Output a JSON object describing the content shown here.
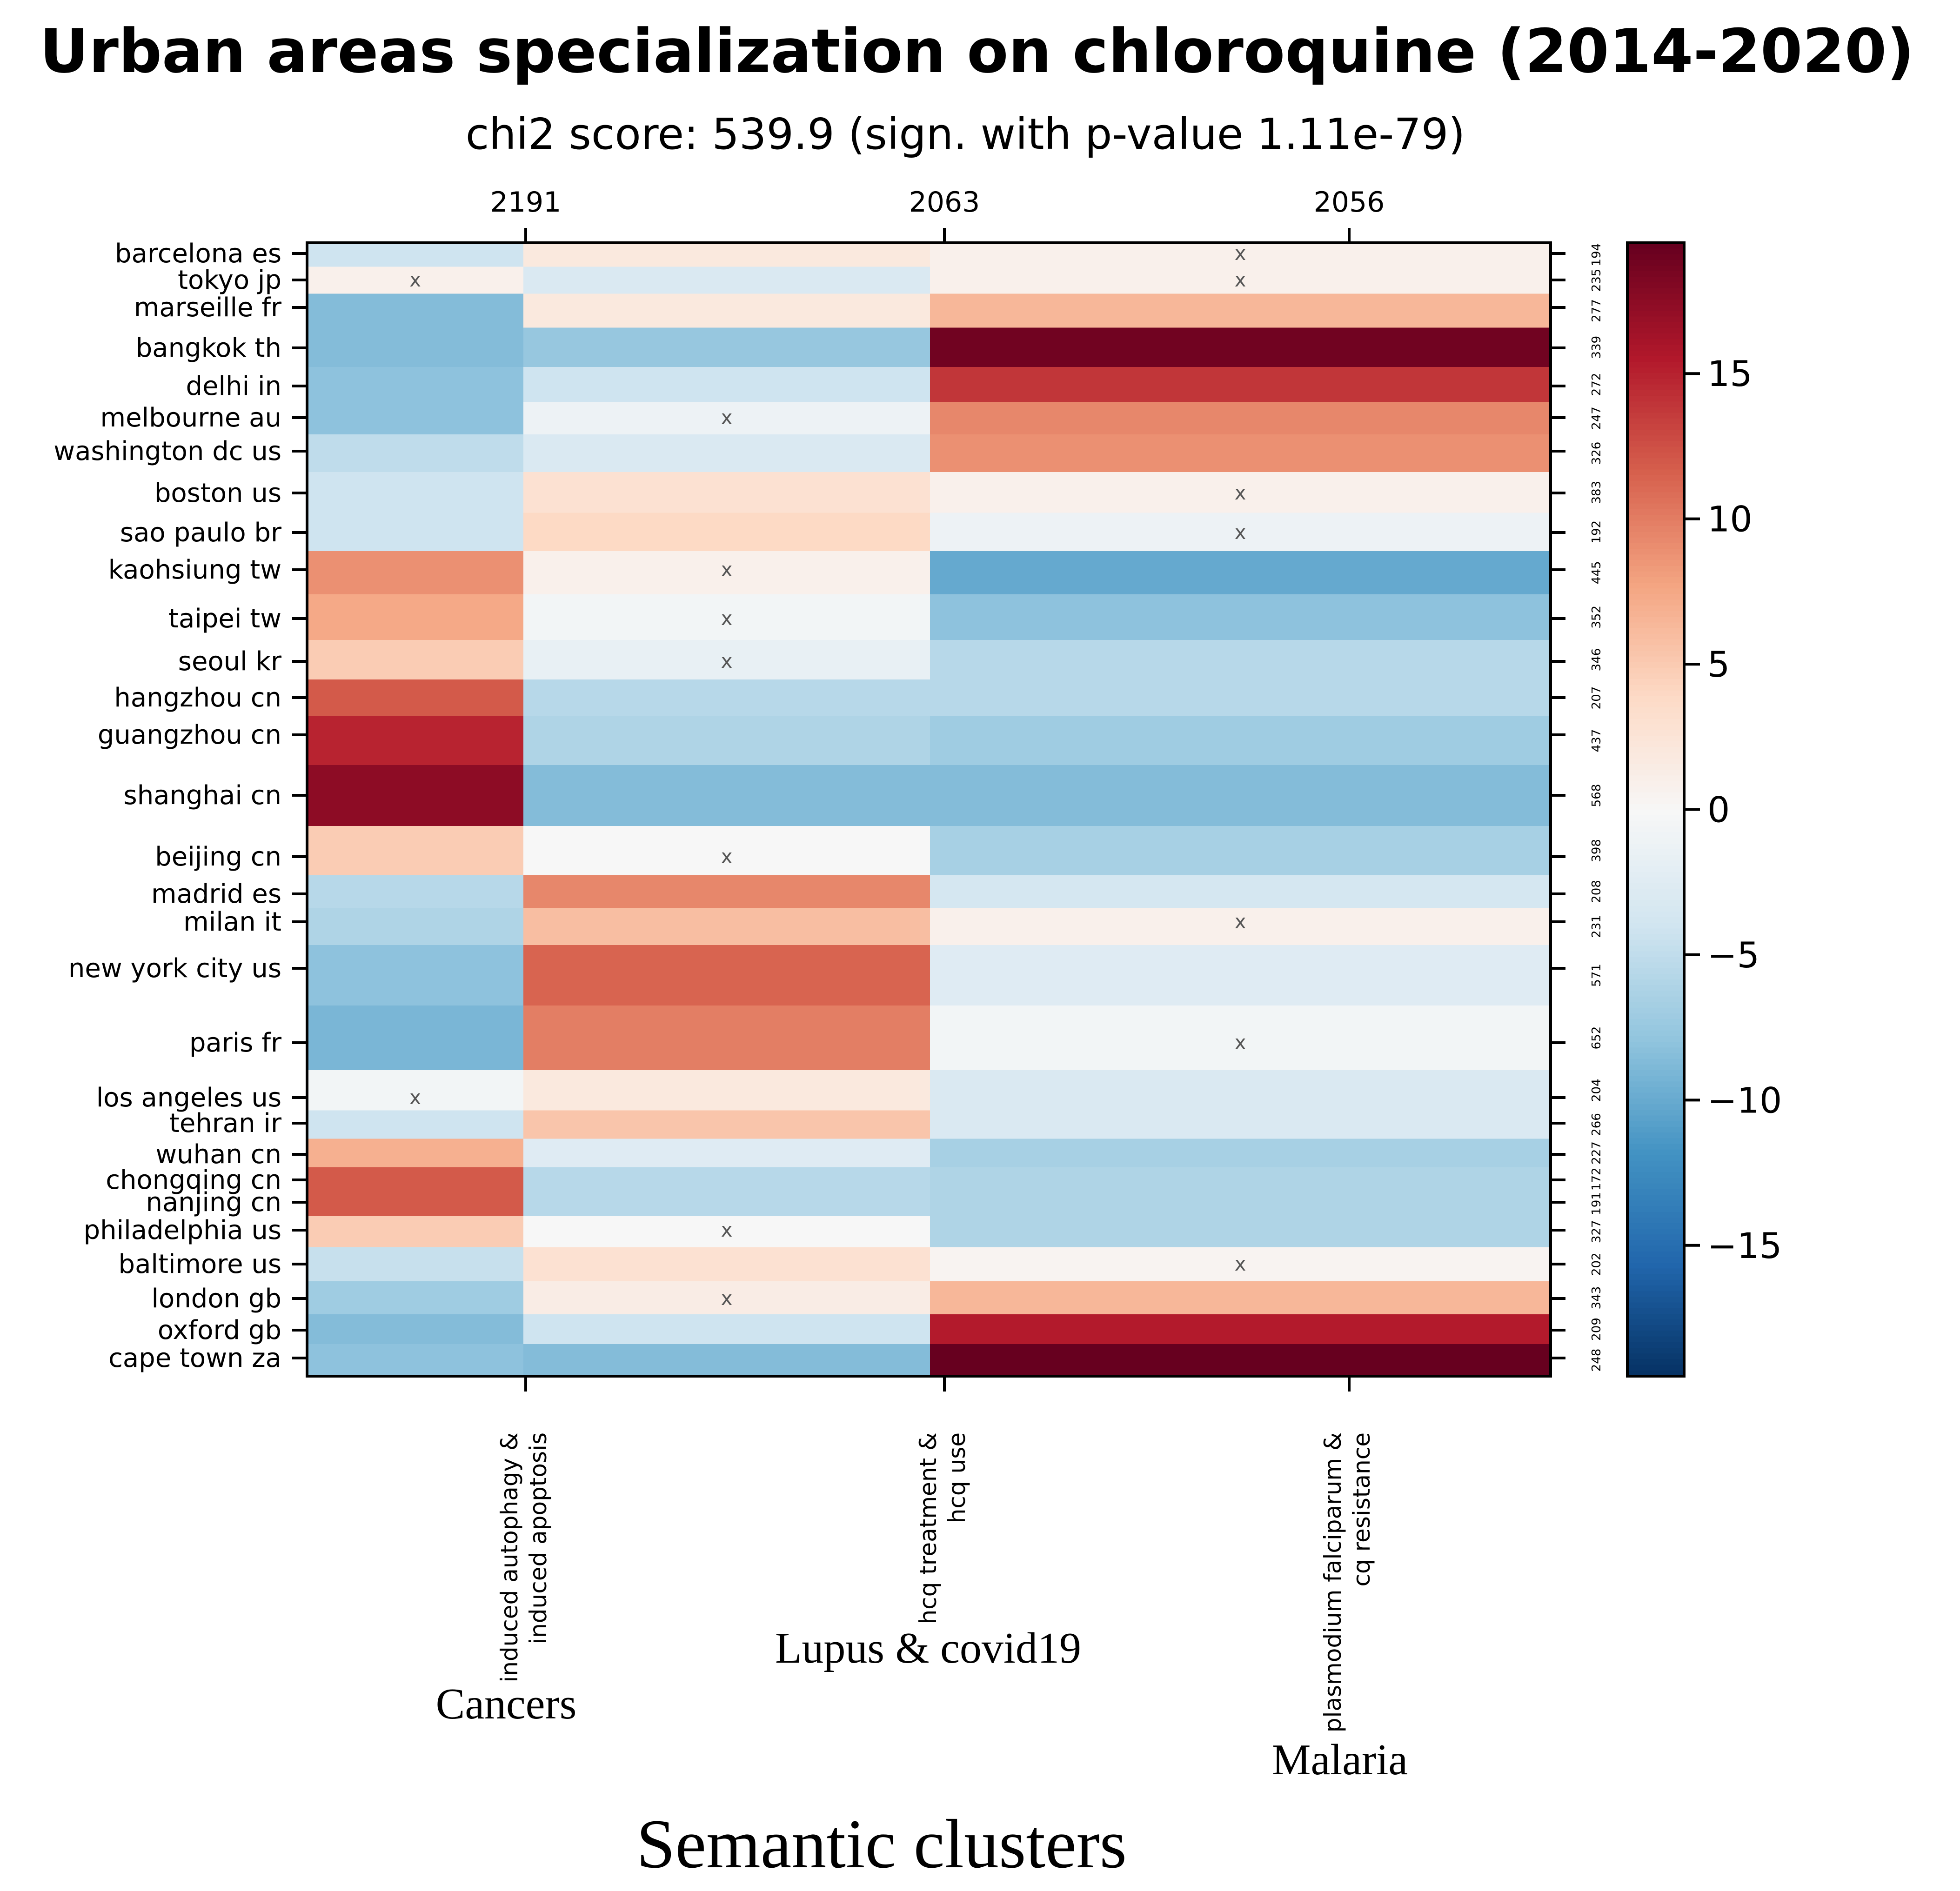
{
  "chart_data": {
    "type": "heatmap",
    "title": "Urban areas specialization on chloroquine (2014-2020)",
    "subtitle": "chi2 score: 539.9 (sign. with p-value 1.11e-79)",
    "xlabel": "Semantic clusters",
    "columns": [
      {
        "count": "2191",
        "label_lines": [
          "induced autophagy &",
          "induced apoptosis"
        ],
        "group": "Cancers"
      },
      {
        "count": "2063",
        "label_lines": [
          "hcq treatment &",
          "hcq use"
        ],
        "group": "Lupus & covid19"
      },
      {
        "count": "2056",
        "label_lines": [
          "plasmodium falciparum &",
          "cq resistance"
        ],
        "group": "Malaria"
      }
    ],
    "rows": [
      {
        "label": "barcelona es",
        "count": "194",
        "values": [
          -4,
          2,
          1
        ],
        "marks": [
          false,
          false,
          true
        ]
      },
      {
        "label": "tokyo jp",
        "count": "235",
        "values": [
          1,
          -3,
          1
        ],
        "marks": [
          true,
          false,
          true
        ]
      },
      {
        "label": "marseille fr",
        "count": "277",
        "values": [
          -8.5,
          2,
          6.5
        ],
        "marks": [
          false,
          false,
          false
        ]
      },
      {
        "label": "bangkok th",
        "count": "339",
        "values": [
          -8.5,
          -7.5,
          19
        ],
        "marks": [
          false,
          false,
          false
        ]
      },
      {
        "label": "delhi in",
        "count": "272",
        "values": [
          -8,
          -4,
          14
        ],
        "marks": [
          false,
          false,
          false
        ]
      },
      {
        "label": "melbourne au",
        "count": "247",
        "values": [
          -8,
          -1,
          9.5
        ],
        "marks": [
          false,
          true,
          false
        ]
      },
      {
        "label": "washington dc us",
        "count": "326",
        "values": [
          -5,
          -3,
          9
        ],
        "marks": [
          false,
          false,
          false
        ]
      },
      {
        "label": "boston us",
        "count": "383",
        "values": [
          -4,
          3,
          1
        ],
        "marks": [
          false,
          false,
          true
        ]
      },
      {
        "label": "sao paulo br",
        "count": "192",
        "values": [
          -4,
          4,
          -1
        ],
        "marks": [
          false,
          false,
          true
        ]
      },
      {
        "label": "kaohsiung tw",
        "count": "445",
        "values": [
          9,
          1,
          -10
        ],
        "marks": [
          false,
          true,
          false
        ]
      },
      {
        "label": "taipei tw",
        "count": "352",
        "values": [
          7.5,
          -0.5,
          -8
        ],
        "marks": [
          false,
          true,
          false
        ]
      },
      {
        "label": "seoul kr",
        "count": "346",
        "values": [
          5,
          -1.5,
          -5.5
        ],
        "marks": [
          false,
          true,
          false
        ]
      },
      {
        "label": "hangzhou cn",
        "count": "207",
        "values": [
          12,
          -5.5,
          -5.5
        ],
        "marks": [
          false,
          false,
          false
        ]
      },
      {
        "label": "guangzhou cn",
        "count": "437",
        "values": [
          15,
          -6,
          -7
        ],
        "marks": [
          false,
          false,
          false
        ]
      },
      {
        "label": "shanghai cn",
        "count": "568",
        "values": [
          17.5,
          -8.5,
          -8.5
        ],
        "marks": [
          false,
          false,
          false
        ]
      },
      {
        "label": "beijing cn",
        "count": "398",
        "values": [
          5,
          0,
          -6.5
        ],
        "marks": [
          false,
          true,
          false
        ]
      },
      {
        "label": "madrid es",
        "count": "208",
        "values": [
          -5.5,
          9.5,
          -3.5
        ],
        "marks": [
          false,
          false,
          false
        ]
      },
      {
        "label": "milan it",
        "count": "231",
        "values": [
          -6,
          6,
          1
        ],
        "marks": [
          false,
          false,
          true
        ]
      },
      {
        "label": "new york city us",
        "count": "571",
        "values": [
          -8,
          11.5,
          -2.5
        ],
        "marks": [
          false,
          false,
          false
        ]
      },
      {
        "label": "paris fr",
        "count": "652",
        "values": [
          -9,
          10,
          -0.5
        ],
        "marks": [
          false,
          false,
          true
        ]
      },
      {
        "label": "los angeles us",
        "count": "204",
        "values": [
          -0.5,
          2,
          -3
        ],
        "marks": [
          true,
          false,
          false
        ]
      },
      {
        "label": "tehran ir",
        "count": "266",
        "values": [
          -4,
          5.5,
          -3
        ],
        "marks": [
          false,
          false,
          false
        ]
      },
      {
        "label": "wuhan cn",
        "count": "227",
        "values": [
          7,
          -2.5,
          -6.5
        ],
        "marks": [
          false,
          false,
          false
        ]
      },
      {
        "label": "chongqing cn",
        "count": "172",
        "values": [
          12,
          -5.5,
          -6
        ],
        "marks": [
          false,
          false,
          false
        ]
      },
      {
        "label": "nanjing cn",
        "count": "191",
        "values": [
          12,
          -5.5,
          -6
        ],
        "marks": [
          false,
          false,
          false
        ]
      },
      {
        "label": "philadelphia us",
        "count": "327",
        "values": [
          5,
          0,
          -6
        ],
        "marks": [
          false,
          true,
          false
        ]
      },
      {
        "label": "baltimore us",
        "count": "202",
        "values": [
          -4.5,
          3,
          0.5
        ],
        "marks": [
          false,
          false,
          true
        ]
      },
      {
        "label": "london gb",
        "count": "343",
        "values": [
          -7,
          1.5,
          6.5
        ],
        "marks": [
          false,
          true,
          false
        ]
      },
      {
        "label": "oxford gb",
        "count": "209",
        "values": [
          -8.5,
          -4,
          15.5
        ],
        "marks": [
          false,
          false,
          false
        ]
      },
      {
        "label": "cape town za",
        "count": "248",
        "values": [
          -8,
          -8.5,
          20
        ],
        "marks": [
          false,
          false,
          false
        ]
      }
    ],
    "mark_symbol": "x",
    "colorbar": {
      "ticks": [
        -15,
        -10,
        -5,
        0,
        5,
        10,
        15
      ],
      "tick_labels": [
        "−15",
        "−10",
        "−5",
        "0",
        "5",
        "10",
        "15"
      ],
      "vmin": -19.5,
      "vmax": 19.5,
      "colormap": "RdBu_r"
    }
  }
}
